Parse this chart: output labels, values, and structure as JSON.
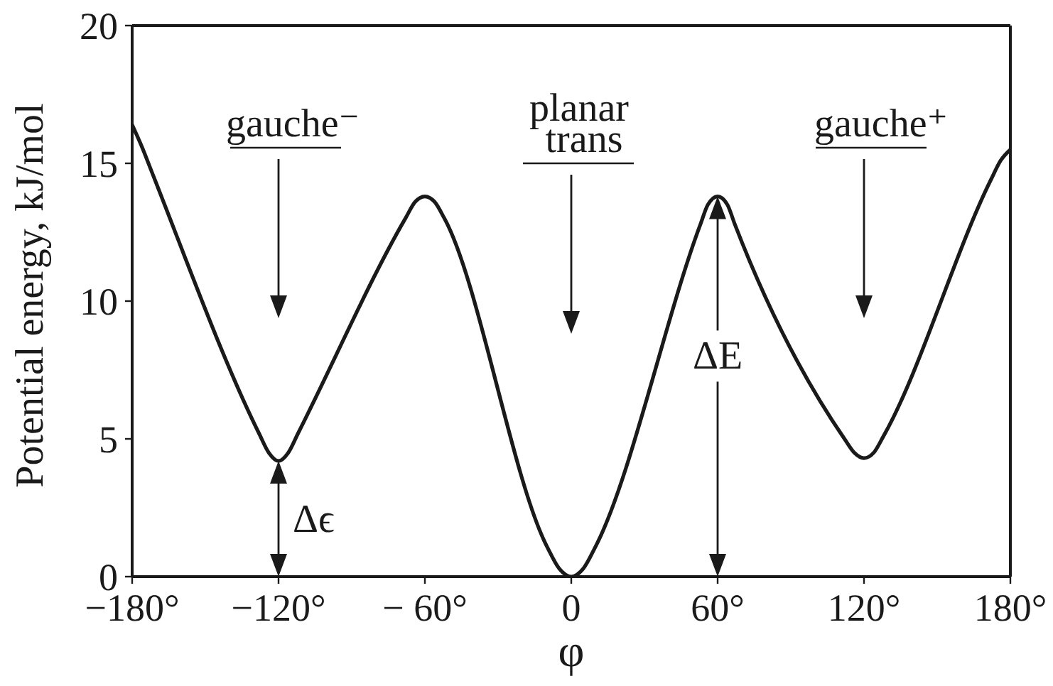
{
  "chart_data": {
    "type": "line",
    "xlabel": "φ",
    "ylabel": "Potential energy, kJ/mol",
    "color": "#1a1a1a",
    "marker": "none",
    "line_style": "solid",
    "x": [
      -180,
      -176,
      -172,
      -128,
      -124,
      -120,
      -116,
      -112,
      -68,
      -64,
      -60,
      -56,
      -52,
      -10,
      -5,
      0,
      5,
      10,
      53,
      56,
      60,
      64,
      67,
      112,
      116,
      120,
      124,
      128,
      172,
      176,
      180
    ],
    "values": [
      16.4,
      15.6,
      14.7,
      5.2,
      4.5,
      4.2,
      4.5,
      5.2,
      13.0,
      13.6,
      13.8,
      13.6,
      13.0,
      1.1,
      0.3,
      0,
      0.3,
      1.1,
      12.8,
      13.5,
      13.8,
      13.5,
      12.8,
      5.0,
      4.5,
      4.3,
      4.5,
      5.1,
      14.4,
      15.1,
      15.5
    ],
    "xlim": [
      -180,
      180
    ],
    "ylim": [
      0,
      20
    ],
    "xticks": [
      {
        "value": -180,
        "label": "−180°"
      },
      {
        "value": -120,
        "label": "−120°"
      },
      {
        "value": -60,
        "label": "− 60°"
      },
      0,
      {
        "value": 60,
        "label": "60°"
      },
      {
        "value": 120,
        "label": "120°"
      },
      {
        "value": 180,
        "label": "180°"
      }
    ],
    "yticks": [
      0,
      5,
      10,
      15,
      20
    ],
    "annotations": [
      "gauche⁻",
      "planar trans",
      "gauche⁺",
      "ΔE",
      {
        "text": "Δϵ",
        "x": -120,
        "y": 4.2
      }
    ]
  }
}
